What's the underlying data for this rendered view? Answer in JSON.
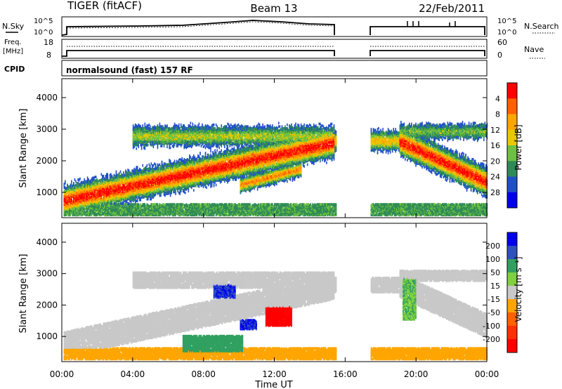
{
  "header": {
    "radar": "TIGER (fitACF)",
    "beam": "Beam 13",
    "date": "22/Feb/2011"
  },
  "strip_labels": {
    "nsky": "N.Sky",
    "nsky_ticks": [
      "10^5",
      "10^0"
    ],
    "nsearch": "N.Search",
    "nsearch_ticks": [
      "10^5",
      "10^0"
    ],
    "freq": "Freq.",
    "freq_unit": "[MHz]",
    "freq_ticks": [
      "18",
      "8"
    ],
    "nave": "Nave",
    "nave_ticks": [
      "60",
      "0"
    ],
    "cpid": "CPID",
    "cpid_text": "normalsound (fast) 157 RF"
  },
  "chart_data": [
    {
      "type": "heatmap",
      "name": "power-panel",
      "ylabel": "Slant Range [km]",
      "xlabel": "",
      "yticks": [
        "1000",
        "2000",
        "3000",
        "4000"
      ],
      "ylim": [
        200,
        4600
      ],
      "xlim": [
        0,
        24
      ],
      "colorbar": {
        "label": "Power [dB]",
        "ticks": [
          "4",
          "8",
          "12",
          "16",
          "20",
          "24",
          "28"
        ],
        "colors": [
          "#0000ee",
          "#2050c8",
          "#2e8b57",
          "#6ec040",
          "#e8c800",
          "#ffa500",
          "#ff6000",
          "#ff0000"
        ]
      },
      "data_gap_hours": [
        15.5,
        17.4
      ],
      "echo_bands": [
        {
          "t0": 0.0,
          "t1": 15.4,
          "r0": 850,
          "r1": 2700,
          "peak_db": 28
        },
        {
          "t0": 4.0,
          "t1": 15.4,
          "r0": 2300,
          "r1": 3300,
          "peak_db": 16
        },
        {
          "t0": 0.0,
          "t1": 24.0,
          "r0": 200,
          "r1": 600,
          "peak_db": 10
        },
        {
          "t0": 18.5,
          "t1": 24.0,
          "r0": 1100,
          "r1": 2700,
          "peak_db": 28
        }
      ]
    },
    {
      "type": "heatmap",
      "name": "velocity-panel",
      "ylabel": "Slant Range [km]",
      "xlabel": "Time UT",
      "yticks": [
        "1000",
        "2000",
        "3000",
        "4000"
      ],
      "xticks": [
        "00:00",
        "04:00",
        "08:00",
        "12:00",
        "16:00",
        "20:00",
        "00:00"
      ],
      "ylim": [
        200,
        4600
      ],
      "xlim": [
        0,
        24
      ],
      "colorbar": {
        "label": "Velocity [m s⁻¹]",
        "ticks": [
          "200",
          "100",
          "50",
          "15",
          "-15",
          "-50",
          "-100",
          "-200"
        ],
        "colors": [
          "#0000ee",
          "#3050c0",
          "#30a060",
          "#80d040",
          "#c8c8c8",
          "#ffa500",
          "#ff6000",
          "#ff3000",
          "#ff0000"
        ]
      },
      "data_gap_hours": [
        15.5,
        17.4
      ],
      "features": [
        {
          "t0": 0.0,
          "t1": 15.4,
          "r0": 850,
          "r1": 2700,
          "velocity": 0
        },
        {
          "t0": 6.8,
          "t1": 10.2,
          "r0": 500,
          "r1": 1000,
          "velocity": 50
        },
        {
          "t0": 8.5,
          "t1": 9.8,
          "r0": 2200,
          "r1": 2600,
          "velocity": 150
        },
        {
          "t0": 11.5,
          "t1": 13.0,
          "r0": 1300,
          "r1": 1900,
          "velocity": -200
        },
        {
          "t0": 10.0,
          "t1": 11.0,
          "r0": 1200,
          "r1": 1500,
          "velocity": 150
        },
        {
          "t0": 19.2,
          "t1": 20.0,
          "r0": 1500,
          "r1": 2800,
          "velocity": 30
        }
      ]
    }
  ]
}
